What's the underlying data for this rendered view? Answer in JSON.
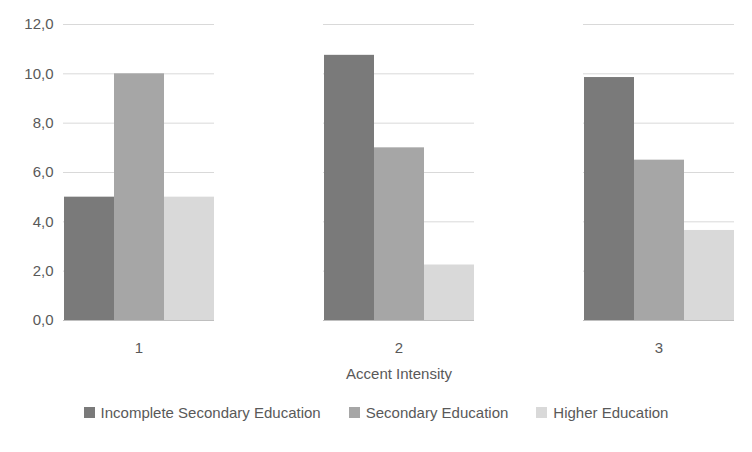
{
  "chart_data": {
    "type": "bar",
    "categories": [
      "1",
      "2",
      "3"
    ],
    "xlabel": "Accent Intensity",
    "series": [
      {
        "name": "Incomplete Secondary Education",
        "color": "#7a7a7a",
        "values": [
          5.0,
          10.75,
          9.85
        ]
      },
      {
        "name": "Secondary Education",
        "color": "#a6a6a6",
        "values": [
          10.0,
          7.0,
          6.5
        ]
      },
      {
        "name": "Higher Education",
        "color": "#d9d9d9",
        "values": [
          5.0,
          2.25,
          3.65
        ]
      }
    ],
    "ylim": [
      0,
      12
    ],
    "yticks": [
      {
        "value": 0,
        "label": "0,0"
      },
      {
        "value": 2,
        "label": "2,0"
      },
      {
        "value": 4,
        "label": "4,0"
      },
      {
        "value": 6,
        "label": "6,0"
      },
      {
        "value": 8,
        "label": "8,0"
      },
      {
        "value": 10,
        "label": "10,0"
      },
      {
        "value": 12,
        "label": "12,0"
      }
    ],
    "grid": true,
    "legend": "bottom"
  }
}
